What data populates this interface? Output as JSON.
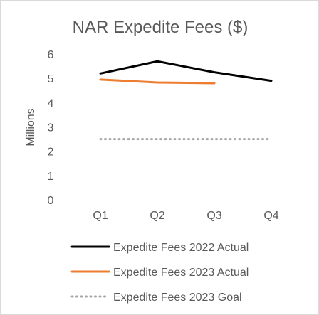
{
  "chart_data": {
    "type": "line",
    "title": "NAR Expedite Fees ($)",
    "ylabel": "Millions",
    "xlabel": "",
    "categories": [
      "Q1",
      "Q2",
      "Q3",
      "Q4"
    ],
    "ylim": [
      0,
      6
    ],
    "yticks": [
      0,
      1,
      2,
      3,
      4,
      5,
      6
    ],
    "grid": false,
    "legend_position": "bottom",
    "series": [
      {
        "name": "Expedite Fees 2022 Actual",
        "values": [
          5.2,
          5.7,
          5.25,
          4.9
        ],
        "color": "#000000",
        "style": "solid"
      },
      {
        "name": "Expedite Fees 2023 Actual",
        "values": [
          4.95,
          4.83,
          4.8,
          null
        ],
        "color": "#ed7d31",
        "style": "solid"
      },
      {
        "name": "Expedite Fees 2023 Goal",
        "values": [
          2.5,
          2.5,
          2.5,
          2.5
        ],
        "color": "#a5a5a5",
        "style": "dotted"
      }
    ]
  }
}
